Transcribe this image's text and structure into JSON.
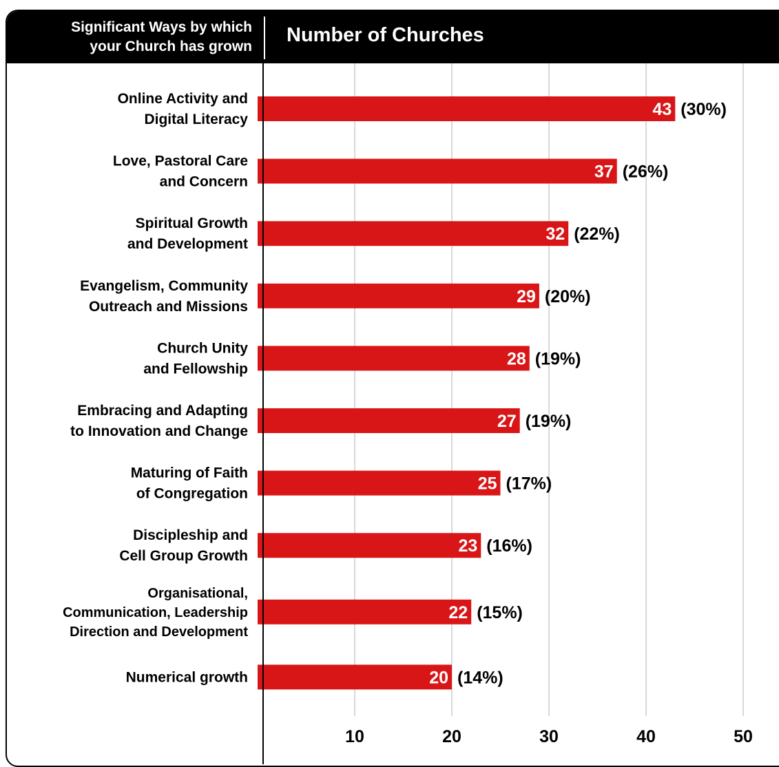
{
  "header": {
    "left_line1": "Significant Ways by which",
    "left_line2": "your Church has grown",
    "right_title": "Number of Churches"
  },
  "colors": {
    "bar": "#d91617",
    "header_bg": "#000000",
    "grid": "#cccccc",
    "text": "#000000"
  },
  "chart_data": {
    "type": "bar",
    "orientation": "horizontal",
    "ylabel": "Significant Ways by which your Church has grown",
    "xlabel": "Number of Churches",
    "xlim": [
      0,
      50
    ],
    "xticks": [
      "10",
      "20",
      "30",
      "40",
      "50"
    ],
    "grid": true,
    "categories": [
      [
        "Online Activity and",
        "Digital Literacy"
      ],
      [
        "Love, Pastoral Care",
        "and Concern"
      ],
      [
        "Spiritual Growth",
        "and Development"
      ],
      [
        "Evangelism, Community",
        "Outreach and Missions"
      ],
      [
        "Church Unity",
        "and Fellowship"
      ],
      [
        "Embracing and Adapting",
        "to Innovation and Change"
      ],
      [
        "Maturing of Faith",
        "of Congregation"
      ],
      [
        "Discipleship and",
        "Cell Group Growth"
      ],
      [
        "Organisational,",
        "Communication, Leadership",
        "Direction and Development"
      ],
      [
        "Numerical growth"
      ]
    ],
    "values": [
      43,
      37,
      32,
      29,
      28,
      27,
      25,
      23,
      22,
      20
    ],
    "percent_labels": [
      "(30%)",
      "(26%)",
      "(22%)",
      "(20%)",
      "(19%)",
      "(19%)",
      "(17%)",
      "(16%)",
      "(15%)",
      "(14%)"
    ]
  }
}
